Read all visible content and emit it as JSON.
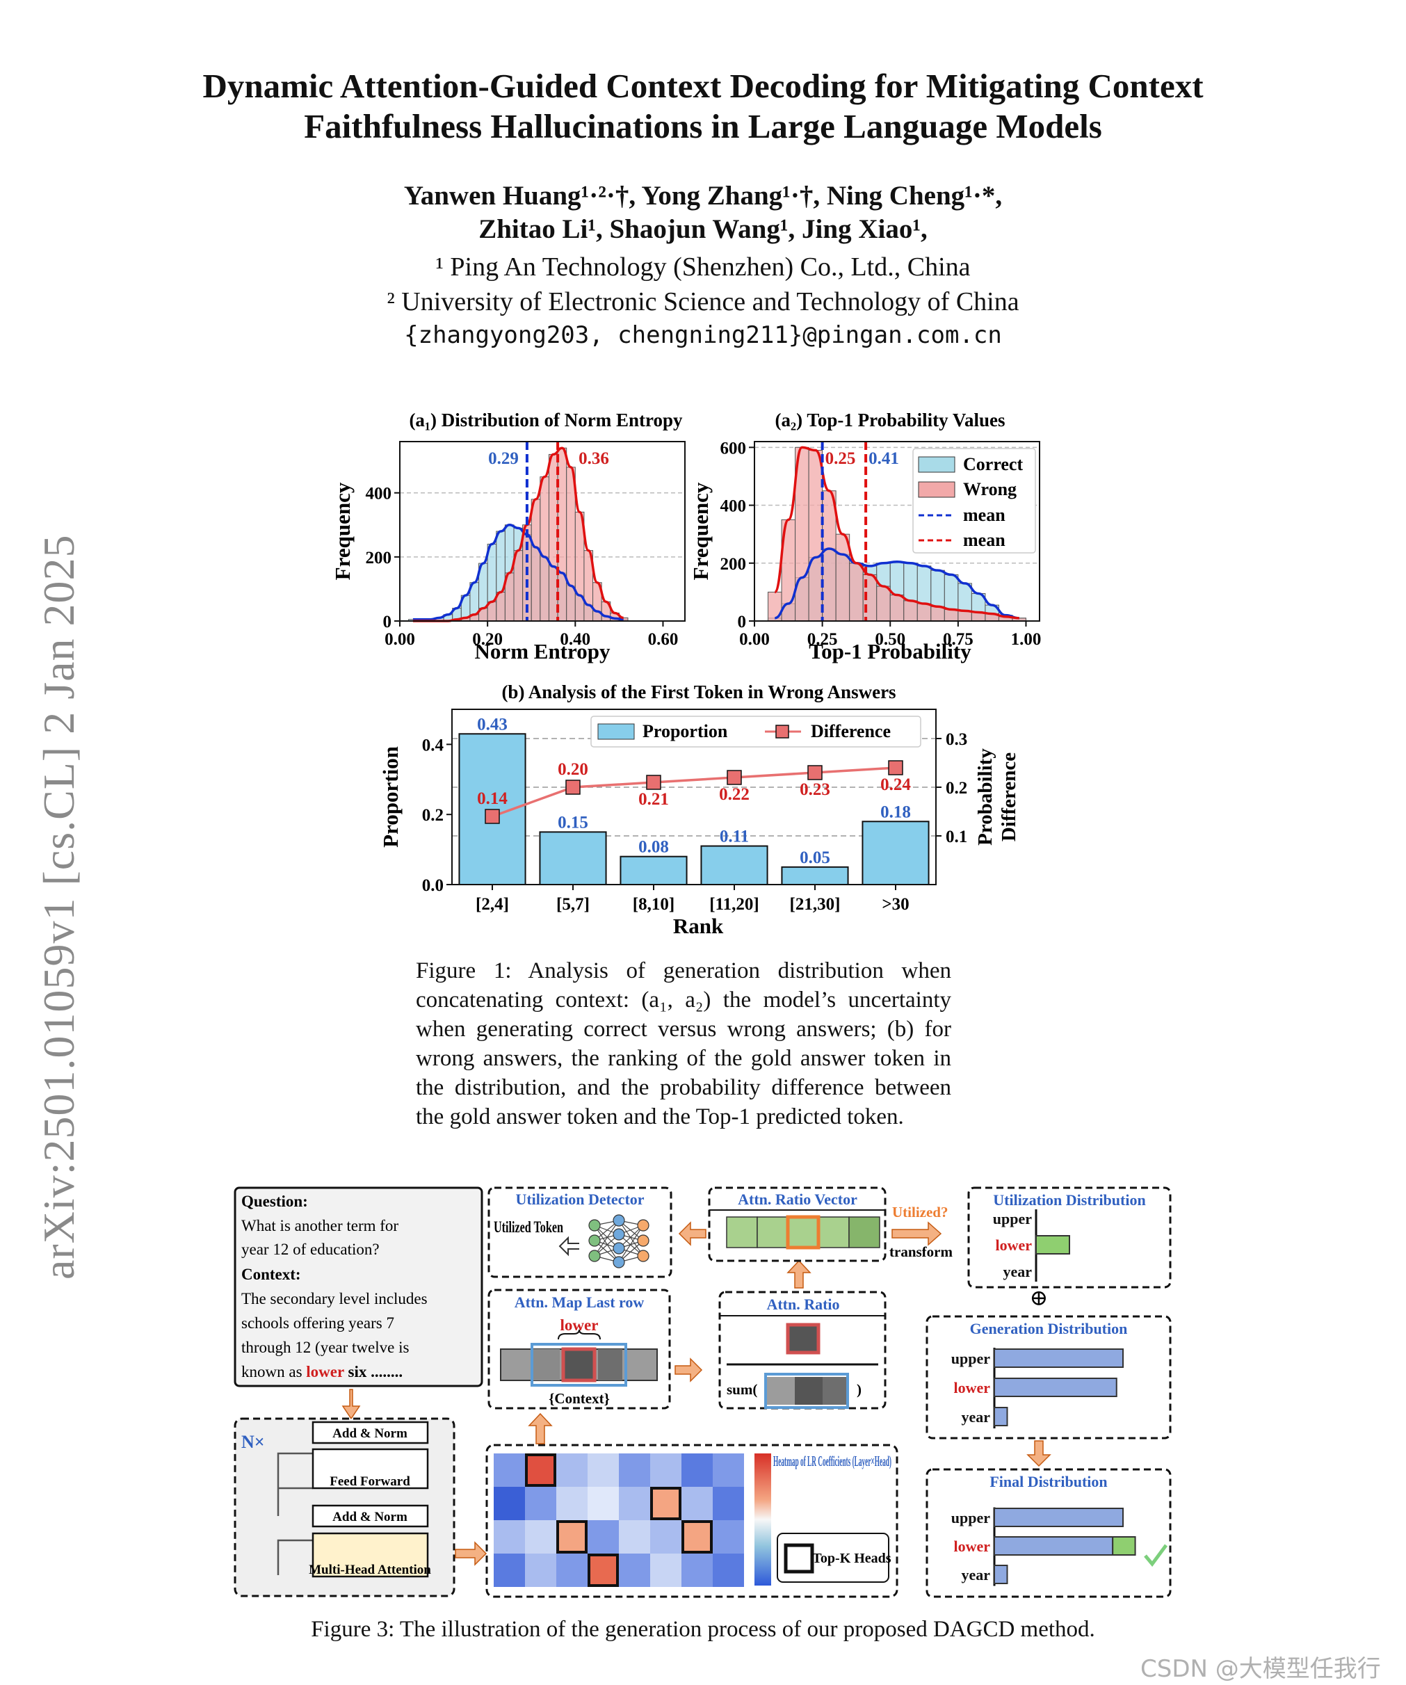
{
  "paper": {
    "title_line1": "Dynamic Attention-Guided Context Decoding for Mitigating Context",
    "title_line2": "Faithfulness Hallucinations in Large Language Models",
    "authors_line1": "Yanwen Huang¹·²·†, Yong Zhang¹·†, Ning Cheng¹·*,",
    "authors_line2": "Zhitao Li¹, Shaojun Wang¹, Jing Xiao¹,",
    "affiliation1": "¹ Ping An Technology (Shenzhen) Co., Ltd., China",
    "affiliation2": "² University of Electronic Science and Technology of China",
    "email": "{zhangyong203, chengning211}@pingan.com.cn",
    "arxiv_stamp": "arXiv:2501.01059v1  [cs.CL]  2 Jan 2025",
    "figure1_caption": "Figure 1: Analysis of generation distribution when concatenating context: (a₁, a₂) the model’s uncertainty when generating correct versus wrong answers; (b) for wrong answers, the ranking of the gold answer token in the distribution, and the probability difference between the gold answer token and the Top-1 predicted token.",
    "figure3_caption": "Figure 3: The illustration of the generation process of our proposed DAGCD method.",
    "watermark": "CSDN @大模型任我行"
  },
  "colors": {
    "correct": "#a9dbe8",
    "wrong": "#f2a9a9",
    "blue_line": "#1030d0",
    "red_line": "#e01010",
    "bar": "#87ceeb",
    "diff": "#e87070",
    "label_blue": "#3060c0",
    "label_red": "#d02020"
  },
  "chart_data": [
    {
      "type": "histogram",
      "title": "(a₁) Distribution of Norm Entropy",
      "xlabel": "Norm Entropy",
      "ylabel": "Frequency",
      "xlim": [
        0.0,
        0.65
      ],
      "ylim": [
        0,
        560
      ],
      "xticks": [
        "0.00",
        "0.20",
        "0.40",
        "0.60"
      ],
      "yticks": [
        "0",
        "200",
        "400"
      ],
      "bin_edges": [
        0.02,
        0.04,
        0.06,
        0.08,
        0.1,
        0.12,
        0.14,
        0.16,
        0.18,
        0.2,
        0.22,
        0.24,
        0.26,
        0.28,
        0.3,
        0.32,
        0.34,
        0.36,
        0.38,
        0.4,
        0.42,
        0.44,
        0.46,
        0.48,
        0.5,
        0.52
      ],
      "series": [
        {
          "name": "Correct",
          "values": [
            5,
            5,
            5,
            10,
            20,
            40,
            80,
            120,
            180,
            240,
            280,
            300,
            290,
            270,
            230,
            200,
            170,
            150,
            110,
            80,
            50,
            30,
            15,
            8,
            5
          ]
        },
        {
          "name": "Wrong",
          "values": [
            0,
            0,
            0,
            0,
            0,
            5,
            10,
            20,
            40,
            60,
            90,
            150,
            220,
            300,
            380,
            450,
            520,
            540,
            480,
            340,
            220,
            120,
            60,
            25,
            10
          ]
        }
      ],
      "means": [
        {
          "label": "0.29",
          "value": 0.29
        },
        {
          "label": "0.36",
          "value": 0.36
        }
      ]
    },
    {
      "type": "histogram",
      "title": "(a₂) Top-1 Probability Values",
      "xlabel": "Top-1 Probability",
      "ylabel": "Frequency",
      "xlim": [
        0.0,
        1.05
      ],
      "ylim": [
        0,
        620
      ],
      "xticks": [
        "0.00",
        "0.25",
        "0.50",
        "0.75",
        "1.00"
      ],
      "yticks": [
        "0",
        "200",
        "400",
        "600"
      ],
      "bin_edges": [
        0.05,
        0.1,
        0.15,
        0.2,
        0.25,
        0.3,
        0.35,
        0.4,
        0.45,
        0.5,
        0.55,
        0.6,
        0.65,
        0.7,
        0.75,
        0.8,
        0.85,
        0.9,
        0.95,
        1.0
      ],
      "series": [
        {
          "name": "Correct",
          "values": [
            10,
            60,
            150,
            220,
            250,
            230,
            200,
            190,
            200,
            205,
            200,
            190,
            175,
            160,
            130,
            95,
            55,
            20,
            10
          ]
        },
        {
          "name": "Wrong",
          "values": [
            100,
            350,
            600,
            590,
            450,
            300,
            200,
            160,
            120,
            90,
            70,
            60,
            50,
            40,
            35,
            30,
            25,
            15,
            10
          ]
        }
      ],
      "means": [
        {
          "label": "0.25",
          "value": 0.25
        },
        {
          "label": "0.41",
          "value": 0.41
        }
      ],
      "legend": [
        "Correct",
        "Wrong",
        "mean",
        "mean"
      ]
    },
    {
      "type": "bar+line",
      "title": "(b) Analysis of the First Token in Wrong Answers",
      "xlabel": "Rank",
      "ylabel": "Proportion",
      "y2label_line1": "Probability",
      "y2label_line2": "Difference",
      "categories": [
        "[2,4]",
        "[5,7]",
        "[8,10]",
        "[11,20]",
        "[21,30]",
        ">30"
      ],
      "ylim": [
        0,
        0.5
      ],
      "y2lim": [
        0,
        0.36
      ],
      "yticks": [
        "0.0",
        "0.2",
        "0.4"
      ],
      "y2ticks": [
        "0.1",
        "0.2",
        "0.3"
      ],
      "series": [
        {
          "name": "Proportion",
          "values": [
            0.43,
            0.15,
            0.08,
            0.11,
            0.05,
            0.18
          ],
          "labels": [
            "0.43",
            "0.15",
            "0.08",
            "0.11",
            "0.05",
            "0.18"
          ]
        },
        {
          "name": "Difference",
          "values": [
            0.14,
            0.2,
            0.21,
            0.22,
            0.23,
            0.24
          ],
          "labels": [
            "0.14",
            "0.20",
            "0.21",
            "0.22",
            "0.23",
            "0.24"
          ]
        }
      ]
    }
  ],
  "figure3": {
    "question_title": "Question:",
    "question_lines": [
      "What is another term for",
      "year 12 of education?"
    ],
    "context_title": "Context:",
    "context_lines": [
      "The secondary level includes",
      "schools offering years 7",
      "through 12 (year twelve is"
    ],
    "context_last_prefix": "known as ",
    "context_last_highlight": "lower",
    "context_last_suffix": " six ........",
    "nx": "N×",
    "layers": [
      "Add & Norm",
      "Feed Forward",
      "Add & Norm",
      "Multi-Head Attention"
    ],
    "utilization_detector": "Utilization Detector",
    "utilized_token": "Utilized Token",
    "attn_ratio_vector": "Attn. Ratio Vector",
    "utilized_q": "Utilized?",
    "transform": "transform",
    "attn_map": "Attn. Map Last row",
    "lower_word": "lower",
    "context_tag": "{Context}",
    "attn_ratio": "Attn. Ratio",
    "sum_label": "sum(",
    "sum_close": ")",
    "heatmap_label": "Heatmap of LR Coefficients (Layer×Head)",
    "topk": "Top-K Heads",
    "util_dist": "Utilization Distribution",
    "gen_dist": "Generation Distribution",
    "final_dist": "Final Distribution",
    "oplus": "⊕",
    "tokens": [
      "upper",
      "lower",
      "year"
    ],
    "util_values": [
      0,
      0.3,
      0
    ],
    "gen_values": [
      1.0,
      0.95,
      0.1
    ],
    "final_values_base": [
      1.0,
      0.92,
      0.1
    ],
    "final_values_add": [
      0,
      0.25,
      0
    ]
  }
}
